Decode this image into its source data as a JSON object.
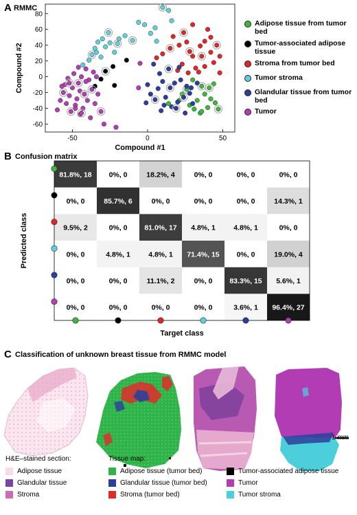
{
  "panel_a": {
    "letter": "A",
    "title": "RMMC",
    "legend": [
      {
        "label": "Adipose tissue from tumor bed",
        "color": "#3cb83a"
      },
      {
        "label": "Tumor-associated adipose tissue",
        "color": "#000000"
      },
      {
        "label": "Stroma from tumor bed",
        "color": "#e02626"
      },
      {
        "label": "Tumor stroma",
        "color": "#5fcfdc"
      },
      {
        "label": "Glandular tissue from tumor bed",
        "color": "#2a3e9c"
      },
      {
        "label": "Tumor",
        "color": "#b23db5"
      }
    ]
  },
  "panel_b": {
    "letter": "B",
    "title": "Confusion matrix",
    "ylabel": "Predicted class",
    "xlabel": "Target class"
  },
  "panel_c": {
    "letter": "C",
    "title": "Classification of unknown breast tissue from RMMC model",
    "scale_bar": "1 mm",
    "he_header": "H&E–stained section:",
    "map_header": "Tissue map:",
    "he_items": [
      {
        "label": "Adipose tissue",
        "color": "#f7dbe9"
      },
      {
        "label": "Glandular tissue",
        "color": "#7a44a3"
      },
      {
        "label": "Stroma",
        "color": "#cf6bb2"
      }
    ],
    "map_items": [
      {
        "label": "Adipose tissue (tumor bed)",
        "color": "#2fb34a"
      },
      {
        "label": "Glandular tissue (tumor bed)",
        "color": "#2d3f9c"
      },
      {
        "label": "Stroma (tumor bed)",
        "color": "#e22a2a"
      },
      {
        "label": "Tumor-associated adipose tissue",
        "color": "#000000"
      },
      {
        "label": "Tumor",
        "color": "#b13cb4"
      },
      {
        "label": "Tumor stroma",
        "color": "#4ccfdb"
      }
    ]
  },
  "chart_data": [
    {
      "type": "scatter",
      "title": "RMMC",
      "xlabel": "Compound #1",
      "ylabel": "Compound #2",
      "xlim": [
        -68,
        58
      ],
      "ylim": [
        -70,
        92
      ],
      "xticks": [
        -50,
        0,
        50
      ],
      "yticks": [
        -60,
        -40,
        -20,
        0,
        20,
        40,
        60,
        80
      ],
      "grid": false,
      "legend_position": "right",
      "series": [
        {
          "name": "Adipose tissue from tumor bed",
          "color": "#3cb83a",
          "points": [
            [
              14,
              -34
            ],
            [
              21,
              -30
            ],
            [
              26,
              -16
            ],
            [
              28,
              -36
            ],
            [
              31,
              -41
            ],
            [
              33,
              -30
            ],
            [
              35,
              -46
            ],
            [
              36,
              -12
            ],
            [
              38,
              -22
            ],
            [
              40,
              -39
            ],
            [
              42,
              -28
            ],
            [
              45,
              -33
            ],
            [
              47,
              -41
            ],
            [
              44,
              -9
            ],
            [
              30,
              -4
            ],
            [
              36,
              -44
            ],
            [
              23,
              -22
            ],
            [
              41,
              -14
            ]
          ]
        },
        {
          "name": "Tumor-associated adipose tissue",
          "color": "#000000",
          "points": [
            [
              -35,
              -12
            ],
            [
              -31,
              -3
            ],
            [
              -28,
              7
            ],
            [
              -23,
              13
            ],
            [
              -14,
              21
            ],
            [
              -22,
              -11
            ]
          ]
        },
        {
          "name": "Stroma from tumor bed",
          "color": "#e02626",
          "points": [
            [
              6,
              24
            ],
            [
              10,
              29
            ],
            [
              15,
              36
            ],
            [
              17,
              51
            ],
            [
              21,
              40
            ],
            [
              23,
              16
            ],
            [
              26,
              44
            ],
            [
              28,
              32
            ],
            [
              30,
              26
            ],
            [
              32,
              11
            ],
            [
              34,
              6
            ],
            [
              35,
              39
            ],
            [
              36,
              26
            ],
            [
              38,
              13
            ],
            [
              40,
              60
            ],
            [
              42,
              31
            ],
            [
              44,
              18
            ],
            [
              46,
              40
            ],
            [
              48,
              26
            ],
            [
              48,
              5
            ],
            [
              30,
              66
            ],
            [
              42,
              50
            ],
            [
              24,
              56
            ],
            [
              20,
              8
            ],
            [
              38,
              45
            ],
            [
              27,
              5
            ]
          ]
        },
        {
          "name": "Tumor stroma",
          "color": "#5fcfdc",
          "points": [
            [
              -43,
              15
            ],
            [
              -39,
              21
            ],
            [
              -37,
              28
            ],
            [
              -35,
              36
            ],
            [
              -33,
              44
            ],
            [
              -30,
              48
            ],
            [
              -28,
              38
            ],
            [
              -26,
              56
            ],
            [
              -25,
              43
            ],
            [
              -22,
              31
            ],
            [
              -19,
              48
            ],
            [
              -15,
              52
            ],
            [
              -10,
              46
            ],
            [
              -6,
              69
            ],
            [
              -2,
              66
            ],
            [
              2,
              55
            ],
            [
              6,
              45
            ],
            [
              10,
              88
            ],
            [
              14,
              84
            ],
            [
              16,
              71
            ],
            [
              -34,
              31
            ],
            [
              -31,
              25
            ],
            [
              -20,
              42
            ],
            [
              5,
              62
            ]
          ]
        },
        {
          "name": "Glandular tissue from tumor bed",
          "color": "#2a3e9c",
          "points": [
            [
              0,
              -10
            ],
            [
              2,
              -22
            ],
            [
              5,
              -29
            ],
            [
              7,
              -15
            ],
            [
              8,
              4
            ],
            [
              10,
              -6
            ],
            [
              12,
              -26
            ],
            [
              15,
              -14
            ],
            [
              16,
              -38
            ],
            [
              18,
              -8
            ],
            [
              20,
              -32
            ],
            [
              22,
              -4
            ],
            [
              24,
              -26
            ],
            [
              26,
              -12
            ],
            [
              28,
              -21
            ],
            [
              30,
              -34
            ],
            [
              33,
              -8
            ],
            [
              19,
              -40
            ],
            [
              11,
              -36
            ],
            [
              -1,
              -33
            ],
            [
              4,
              16
            ],
            [
              9,
              -43
            ],
            [
              14,
              10
            ],
            [
              25,
              -46
            ],
            [
              21,
              12
            ],
            [
              29,
              -14
            ]
          ]
        },
        {
          "name": "Tumor",
          "color": "#b23db5",
          "points": [
            [
              -60,
              -42
            ],
            [
              -58,
              -30
            ],
            [
              -56,
              -20
            ],
            [
              -55,
              -10
            ],
            [
              -54,
              -34
            ],
            [
              -53,
              -2
            ],
            [
              -52,
              -24
            ],
            [
              -51,
              -44
            ],
            [
              -50,
              -14
            ],
            [
              -49,
              4
            ],
            [
              -48,
              -36
            ],
            [
              -47,
              -28
            ],
            [
              -46,
              -8
            ],
            [
              -45,
              -48
            ],
            [
              -45,
              -18
            ],
            [
              -44,
              0
            ],
            [
              -43,
              -40
            ],
            [
              -42,
              -22
            ],
            [
              -41,
              10
            ],
            [
              -40,
              -30
            ],
            [
              -39,
              -4
            ],
            [
              -38,
              -52
            ],
            [
              -37,
              -16
            ],
            [
              -36,
              6
            ],
            [
              -35,
              -34
            ],
            [
              -34,
              0
            ],
            [
              -33,
              -22
            ],
            [
              -31,
              -44
            ],
            [
              -29,
              -60
            ],
            [
              -21,
              -64
            ],
            [
              -6,
              -14
            ],
            [
              -41,
              -6
            ],
            [
              -52,
              -8
            ],
            [
              -48,
              -40
            ],
            [
              -46,
              12
            ],
            [
              -5,
              17
            ],
            [
              -57,
              -12
            ],
            [
              -44,
              -46
            ]
          ]
        }
      ]
    },
    {
      "type": "heatmap",
      "title": "Confusion matrix",
      "xlabel": "Target class",
      "ylabel": "Predicted class",
      "class_colors": [
        "#3cb83a",
        "#000000",
        "#e02626",
        "#5fcfdc",
        "#2a3e9c",
        "#b23db5"
      ],
      "percent": [
        [
          81.8,
          0,
          18.2,
          0,
          0,
          0
        ],
        [
          0,
          85.7,
          0,
          0,
          0,
          14.3
        ],
        [
          9.5,
          0,
          81.0,
          4.8,
          4.8,
          0
        ],
        [
          0,
          4.8,
          4.8,
          71.4,
          0,
          19.0
        ],
        [
          0,
          0,
          11.1,
          0,
          83.3,
          5.6
        ],
        [
          0,
          0,
          0,
          0,
          3.6,
          96.4
        ]
      ],
      "counts": [
        [
          18,
          0,
          4,
          0,
          0,
          0
        ],
        [
          0,
          6,
          0,
          0,
          0,
          1
        ],
        [
          2,
          0,
          17,
          1,
          1,
          0
        ],
        [
          0,
          1,
          1,
          15,
          0,
          4
        ],
        [
          0,
          0,
          2,
          0,
          15,
          1
        ],
        [
          0,
          0,
          0,
          0,
          1,
          27
        ]
      ],
      "cell_labels": [
        [
          "81.8%, 18",
          "0%, 0",
          "18.2%, 4",
          "0%, 0",
          "0%, 0",
          "0%, 0"
        ],
        [
          "0%, 0",
          "85.7%, 6",
          "0%, 0",
          "0%, 0",
          "0%, 0",
          "14.3%, 1"
        ],
        [
          "9.5%, 2",
          "0%, 0",
          "81.0%, 17",
          "4.8%, 1",
          "4.8%, 1",
          "0%, 0"
        ],
        [
          "0%, 0",
          "4.8%, 1",
          "4.8%, 1",
          "71.4%, 15",
          "0%, 0",
          "19.0%, 4"
        ],
        [
          "0%, 0",
          "0%, 0",
          "11.1%, 2",
          "0%, 0",
          "83.3%, 15",
          "5.6%, 1"
        ],
        [
          "0%, 0",
          "0%, 0",
          "0%, 0",
          "0%, 0",
          "3.6%, 1",
          "96.4%, 27"
        ]
      ]
    }
  ]
}
